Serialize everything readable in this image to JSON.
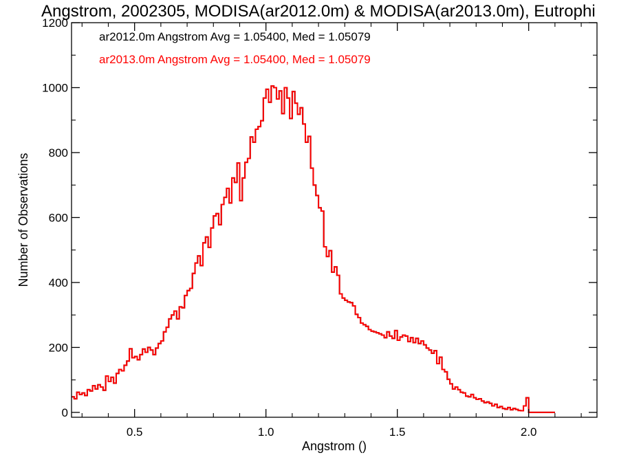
{
  "chart_data": {
    "type": "histogram",
    "title": "Angstrom, 2002305, MODISA(ar2012.0m) & MODISA(ar2013.0m), Eutrophi",
    "xlabel": "Angstrom ()",
    "ylabel": "Number of Observations",
    "xlim": [
      0.26,
      2.26
    ],
    "ylim": [
      -15,
      1200
    ],
    "xticks": [
      0.5,
      1.0,
      1.5,
      2.0
    ],
    "xtick_labels": [
      "0.5",
      "1.0",
      "1.5",
      "2.0"
    ],
    "yticks": [
      0,
      200,
      400,
      600,
      800,
      1000,
      1200
    ],
    "ytick_labels": [
      "0",
      "200",
      "400",
      "600",
      "800",
      "1000",
      "1200"
    ],
    "grid": false,
    "legend_placement": "top-left",
    "bin_start": 0.26,
    "bin_width": 0.01,
    "series": [
      {
        "name": "ar2012.0m Angstrom Avg = 1.05400, Med = 1.05079",
        "color": "#000000",
        "values": [
          48,
          42,
          62,
          55,
          60,
          52,
          70,
          66,
          82,
          72,
          85,
          78,
          68,
          112,
          95,
          108,
          90,
          120,
          132,
          128,
          145,
          158,
          196,
          168,
          172,
          162,
          178,
          195,
          185,
          200,
          192,
          178,
          198,
          212,
          220,
          248,
          262,
          288,
          300,
          312,
          288,
          325,
          322,
          360,
          375,
          382,
          428,
          460,
          482,
          452,
          522,
          540,
          508,
          568,
          605,
          612,
          578,
          640,
          662,
          690,
          645,
          722,
          708,
          768,
          652,
          722,
          770,
          782,
          848,
          832,
          872,
          880,
          898,
          968,
          995,
          955,
          1005,
          1000,
          965,
          990,
          920,
          1000,
          968,
          905,
          988,
          952,
          918,
          938,
          888,
          832,
          850,
          752,
          700,
          668,
          630,
          620,
          510,
          480,
          498,
          432,
          448,
          422,
          365,
          352,
          345,
          340,
          338,
          328,
          302,
          292,
          275,
          270,
          265,
          255,
          250,
          248,
          245,
          242,
          238,
          230,
          248,
          235,
          228,
          252,
          222,
          232,
          238,
          235,
          218,
          230,
          215,
          228,
          212,
          220,
          208,
          198,
          192,
          182,
          190,
          150,
          170,
          132,
          125,
          102,
          88,
          72,
          78,
          70,
          62,
          60,
          50,
          48,
          55,
          45,
          40,
          42,
          35,
          30,
          32,
          28,
          20,
          25,
          15,
          18,
          12,
          10,
          15,
          8,
          12,
          9,
          6,
          5,
          20,
          45,
          0,
          0,
          0,
          0,
          0,
          0,
          0,
          0,
          0,
          0
        ]
      },
      {
        "name": "ar2013.0m Angstrom Avg = 1.05400, Med = 1.05079",
        "color": "#ff0000",
        "values": [
          48,
          42,
          62,
          55,
          60,
          52,
          70,
          66,
          82,
          72,
          85,
          78,
          68,
          112,
          95,
          108,
          90,
          120,
          132,
          128,
          145,
          158,
          196,
          168,
          172,
          162,
          178,
          195,
          185,
          200,
          192,
          178,
          198,
          212,
          220,
          248,
          262,
          288,
          300,
          312,
          288,
          325,
          322,
          360,
          375,
          382,
          428,
          460,
          482,
          452,
          522,
          540,
          508,
          568,
          605,
          612,
          578,
          640,
          662,
          690,
          645,
          722,
          708,
          768,
          652,
          722,
          770,
          782,
          848,
          832,
          872,
          880,
          898,
          968,
          995,
          955,
          1005,
          1000,
          965,
          990,
          920,
          1000,
          968,
          905,
          988,
          952,
          918,
          938,
          888,
          832,
          850,
          752,
          700,
          668,
          630,
          620,
          510,
          480,
          498,
          432,
          448,
          422,
          365,
          352,
          345,
          340,
          338,
          328,
          302,
          292,
          275,
          270,
          265,
          255,
          250,
          248,
          245,
          242,
          238,
          230,
          248,
          235,
          228,
          252,
          222,
          232,
          238,
          235,
          218,
          230,
          215,
          228,
          212,
          220,
          208,
          198,
          192,
          182,
          190,
          150,
          170,
          132,
          125,
          102,
          88,
          72,
          78,
          70,
          62,
          60,
          50,
          48,
          55,
          45,
          40,
          42,
          35,
          30,
          32,
          28,
          20,
          25,
          15,
          18,
          12,
          10,
          15,
          8,
          12,
          9,
          6,
          5,
          20,
          45,
          0,
          0,
          0,
          0,
          0,
          0,
          0,
          0,
          0,
          0
        ]
      }
    ]
  }
}
